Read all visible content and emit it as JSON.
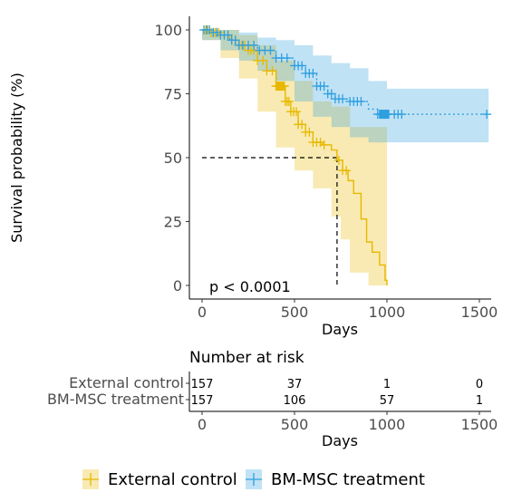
{
  "chart_data": {
    "type": "line",
    "subtype": "kaplan-meier",
    "xlabel": "Days",
    "ylabel": "Survival probability (%)",
    "xlim": [
      0,
      1550
    ],
    "ylim": [
      0,
      100
    ],
    "x_ticks": [
      0,
      500,
      1000,
      1500
    ],
    "y_ticks": [
      0,
      25,
      50,
      75,
      100
    ],
    "grid": false,
    "legend_position": "bottom",
    "annotation": "p < 0.0001",
    "median_survival": {
      "days": 730,
      "survival": 50
    },
    "series": [
      {
        "name": "External control",
        "color": "#E7B800",
        "curve": [
          [
            0,
            100
          ],
          [
            40,
            99
          ],
          [
            100,
            98
          ],
          [
            150,
            96
          ],
          [
            200,
            94
          ],
          [
            250,
            92
          ],
          [
            300,
            88
          ],
          [
            350,
            84
          ],
          [
            400,
            78
          ],
          [
            450,
            72
          ],
          [
            480,
            68
          ],
          [
            520,
            63
          ],
          [
            560,
            60
          ],
          [
            600,
            56
          ],
          [
            650,
            55
          ],
          [
            700,
            53
          ],
          [
            730,
            49
          ],
          [
            760,
            45
          ],
          [
            790,
            41
          ],
          [
            820,
            36
          ],
          [
            860,
            26
          ],
          [
            890,
            17
          ],
          [
            920,
            13
          ],
          [
            960,
            8
          ],
          [
            990,
            2
          ],
          [
            1000,
            0
          ]
        ],
        "ci_upper": [
          [
            0,
            100
          ],
          [
            100,
            100
          ],
          [
            200,
            98
          ],
          [
            300,
            94
          ],
          [
            400,
            88
          ],
          [
            500,
            80
          ],
          [
            600,
            72
          ],
          [
            700,
            70
          ],
          [
            800,
            62
          ],
          [
            1000,
            62
          ]
        ],
        "ci_lower": [
          [
            0,
            100
          ],
          [
            100,
            96
          ],
          [
            200,
            89
          ],
          [
            300,
            81
          ],
          [
            400,
            68
          ],
          [
            500,
            54
          ],
          [
            600,
            45
          ],
          [
            700,
            38
          ],
          [
            750,
            27
          ],
          [
            800,
            18
          ],
          [
            900,
            5
          ],
          [
            1000,
            0
          ]
        ],
        "censor_x": [
          20,
          30,
          50,
          70,
          80,
          90,
          120,
          140,
          160,
          180,
          200,
          215,
          230,
          250,
          265,
          280,
          300,
          330,
          350,
          380,
          400,
          405,
          410,
          415,
          420,
          425,
          430,
          435,
          440,
          445,
          450,
          460,
          470,
          480,
          495,
          510,
          520,
          540,
          560,
          580,
          600,
          620,
          640,
          660,
          740,
          760,
          780
        ]
      },
      {
        "name": "BM-MSC treatment",
        "color": "#2E9FDF",
        "curve": [
          [
            0,
            100
          ],
          [
            50,
            99
          ],
          [
            100,
            98
          ],
          [
            150,
            96
          ],
          [
            200,
            94
          ],
          [
            300,
            92
          ],
          [
            400,
            89
          ],
          [
            500,
            86
          ],
          [
            560,
            83
          ],
          [
            620,
            78
          ],
          [
            680,
            75
          ],
          [
            720,
            73
          ],
          [
            800,
            72
          ],
          [
            900,
            69
          ],
          [
            950,
            67
          ],
          [
            1000,
            67
          ],
          [
            1550,
            67
          ]
        ],
        "ci_upper": [
          [
            0,
            100
          ],
          [
            100,
            100
          ],
          [
            200,
            99
          ],
          [
            300,
            97
          ],
          [
            400,
            96
          ],
          [
            500,
            94
          ],
          [
            600,
            90
          ],
          [
            700,
            87
          ],
          [
            800,
            85
          ],
          [
            900,
            80
          ],
          [
            1000,
            77
          ],
          [
            1550,
            77
          ]
        ],
        "ci_lower": [
          [
            0,
            100
          ],
          [
            100,
            96
          ],
          [
            200,
            92
          ],
          [
            300,
            88
          ],
          [
            400,
            84
          ],
          [
            500,
            80
          ],
          [
            600,
            72
          ],
          [
            700,
            66
          ],
          [
            800,
            62
          ],
          [
            900,
            58
          ],
          [
            1000,
            56
          ],
          [
            1550,
            56
          ]
        ],
        "censor_x": [
          10,
          25,
          40,
          60,
          80,
          100,
          120,
          140,
          160,
          180,
          200,
          220,
          250,
          280,
          310,
          340,
          370,
          400,
          430,
          460,
          500,
          520,
          540,
          560,
          580,
          600,
          620,
          640,
          660,
          680,
          700,
          720,
          740,
          760,
          800,
          820,
          840,
          860,
          950,
          960,
          965,
          970,
          975,
          980,
          985,
          990,
          995,
          1000,
          1005,
          1010,
          1040,
          1060,
          1080,
          1540
        ]
      }
    ],
    "risk_table": {
      "title": "Number at risk",
      "times": [
        0,
        500,
        1000,
        1500
      ],
      "rows": [
        {
          "label": "External control",
          "values": [
            "157",
            "37",
            "1",
            "0"
          ]
        },
        {
          "label": "BM-MSC treatment",
          "values": [
            "157",
            "106",
            "57",
            "1"
          ]
        }
      ],
      "xlabel": "Days"
    }
  }
}
